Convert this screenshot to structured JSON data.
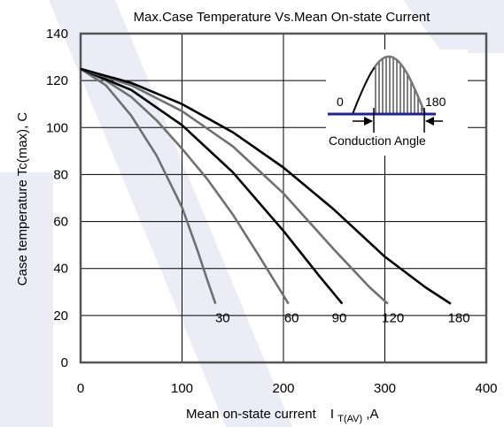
{
  "chart_data": {
    "type": "line",
    "title": "Max.Case Temperature Vs.Mean On-state Current",
    "xlabel": "Mean on-state current",
    "xlabel_symbol": "I",
    "xlabel_subscript": "T(AV)",
    "xlabel_unit": ",A",
    "ylabel": "Case temperature   Tc(max), C",
    "xlim": [
      0,
      400
    ],
    "ylim": [
      0,
      140
    ],
    "x_ticks": [
      "0",
      "100",
      "200",
      "300",
      "400"
    ],
    "y_ticks": [
      "0",
      "20",
      "40",
      "60",
      "80",
      "100",
      "120",
      "140"
    ],
    "grid": true,
    "series": [
      {
        "name": "30",
        "label_x": 140,
        "label_y": 19,
        "color": "#707070",
        "points": [
          [
            0,
            125
          ],
          [
            25,
            118
          ],
          [
            50,
            105
          ],
          [
            75,
            88
          ],
          [
            100,
            66
          ],
          [
            115,
            48
          ],
          [
            125,
            35
          ],
          [
            133,
            25
          ]
        ]
      },
      {
        "name": "60",
        "label_x": 208,
        "label_y": 19,
        "color": "#707070",
        "points": [
          [
            0,
            125
          ],
          [
            25,
            120
          ],
          [
            50,
            113
          ],
          [
            75,
            103
          ],
          [
            100,
            91
          ],
          [
            125,
            78
          ],
          [
            150,
            63
          ],
          [
            175,
            46
          ],
          [
            195,
            32
          ],
          [
            205,
            25
          ]
        ]
      },
      {
        "name": "90",
        "label_x": 255,
        "label_y": 19,
        "color": "#000000",
        "points": [
          [
            0,
            125
          ],
          [
            50,
            116
          ],
          [
            100,
            101
          ],
          [
            150,
            81
          ],
          [
            200,
            56
          ],
          [
            235,
            37
          ],
          [
            258,
            25
          ]
        ]
      },
      {
        "name": "120",
        "label_x": 308,
        "label_y": 19,
        "color": "#707070",
        "points": [
          [
            0,
            125
          ],
          [
            50,
            118
          ],
          [
            100,
            107
          ],
          [
            150,
            92
          ],
          [
            200,
            72
          ],
          [
            250,
            48
          ],
          [
            285,
            32
          ],
          [
            303,
            25
          ]
        ]
      },
      {
        "name": "180",
        "label_x": 373,
        "label_y": 19,
        "color": "#000000",
        "points": [
          [
            0,
            125
          ],
          [
            50,
            119
          ],
          [
            100,
            110
          ],
          [
            150,
            98
          ],
          [
            200,
            83
          ],
          [
            250,
            65
          ],
          [
            300,
            45
          ],
          [
            340,
            32
          ],
          [
            365,
            25
          ]
        ]
      }
    ],
    "inset": {
      "label_start": "0",
      "label_end": "180",
      "caption": "Conduction Angle"
    }
  }
}
